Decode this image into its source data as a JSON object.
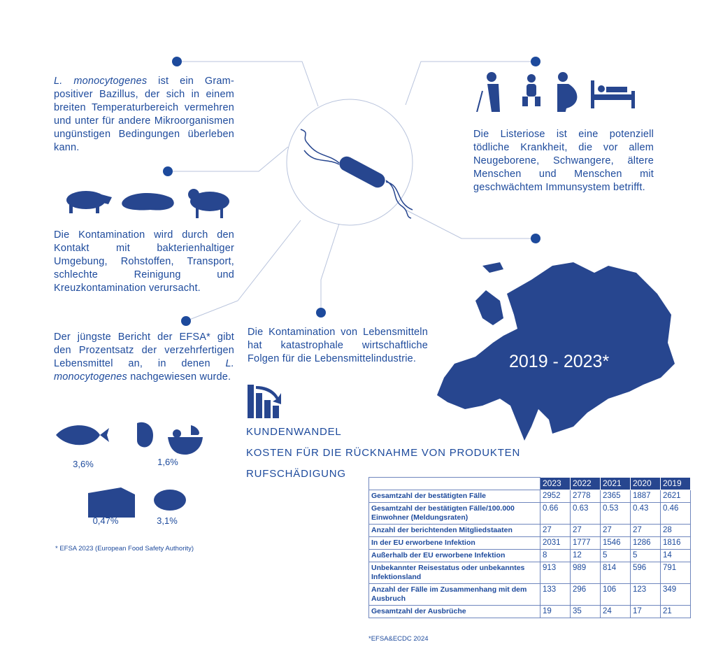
{
  "colors": {
    "primary": "#1d4a9c",
    "dark": "#27468f"
  },
  "blocks": {
    "bacillus_italic": "L. monocytogenes",
    "bacillus_rest": " ist ein Gram-positiver Bazillus, der sich in einem breiten Temperaturbereich vermehren und unter für andere Mikroorganismen ungünstigen Bedingungen überleben kann.",
    "contamination": "Die Kontamination wird durch den Kontakt mit bakterienhaltiger Umgebung, Rohstoffen, Transport, schlechte Reinigung und Kreuzkontamination verursacht.",
    "efsa_pre": "Der jüngste Bericht der EFSA* gibt den Prozentsatz der verzehrfertigen Lebensmittel an, in denen ",
    "efsa_italic": "L. monocytogenes",
    "efsa_post": " nachgewiesen wurde.",
    "disease": "Die Listeriose ist eine potenziell tödliche Krankheit, die vor allem Neugeborene, Schwangere, ältere Menschen und Menschen mit geschwächtem Immunsystem betrifft.",
    "economic": "Die Kontamination von Lebensmitteln hat katastrophale wirtschaftliche Folgen für die Lebensmittelindustrie."
  },
  "consequences": [
    "KUNDENWANDEL",
    "KOSTEN FÜR DIE RÜCKNAHME VON PRODUKTEN",
    "RUFSCHÄDIGUNG"
  ],
  "foods": [
    {
      "icon": "fish-icon",
      "pct": "3,6%"
    },
    {
      "icon": "salad-icon",
      "pct": "1,6%"
    },
    {
      "icon": "cheese-icon",
      "pct": "0,47%"
    },
    {
      "icon": "meat-icon",
      "pct": "3,1%"
    }
  ],
  "efsa_footnote": "* EFSA 2023 (European Food Safety Authority)",
  "map_label": "2019 - 2023*",
  "table": {
    "years": [
      "2023",
      "2022",
      "2021",
      "2020",
      "2019"
    ],
    "rows": [
      {
        "label": "Gesamtzahl der bestätigten Fälle",
        "values": [
          "2952",
          "2778",
          "2365",
          "1887",
          "2621"
        ]
      },
      {
        "label": "Gesamtzahl der bestätigten Fälle/100.000 Einwohner (Meldungsraten)",
        "values": [
          "0.66",
          "0.63",
          "0.53",
          "0.43",
          "0.46"
        ]
      },
      {
        "label": "Anzahl der berichtenden Mitgliedstaaten",
        "values": [
          "27",
          "27",
          "27",
          "27",
          "28"
        ]
      },
      {
        "label": "In der EU erworbene Infektion",
        "values": [
          "2031",
          "1777",
          "1546",
          "1286",
          "1816"
        ]
      },
      {
        "label": "Außerhalb der EU erworbene Infektion",
        "values": [
          "8",
          "12",
          "5",
          "5",
          "14"
        ]
      },
      {
        "label": "Unbekannter Reisestatus oder unbekanntes Infektionsland",
        "values": [
          "913",
          "989",
          "814",
          "596",
          "791"
        ]
      },
      {
        "label": "Anzahl der Fälle im Zusammenhang mit dem Ausbruch",
        "values": [
          "133",
          "296",
          "106",
          "123",
          "349"
        ]
      },
      {
        "label": "Gesamtzahl der Ausbrüche",
        "values": [
          "19",
          "35",
          "24",
          "17",
          "21"
        ]
      }
    ],
    "footnote": "*EFSA&ECDC 2024"
  }
}
